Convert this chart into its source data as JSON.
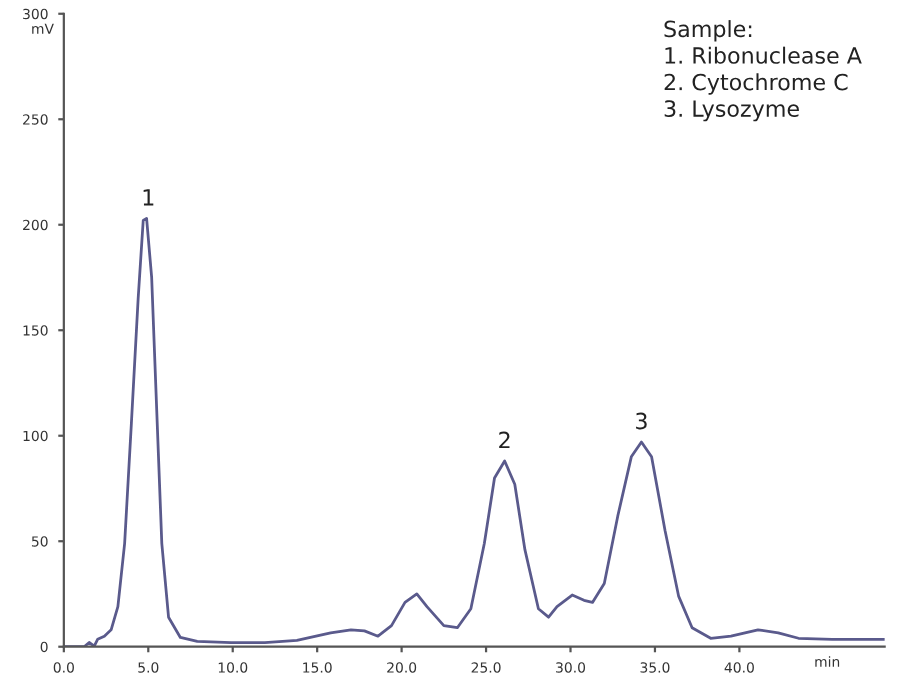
{
  "chart_data": {
    "type": "line",
    "ylabel": "mV",
    "xlabel": "min",
    "x": [
      0,
      1.2,
      1.5,
      1.8,
      2.0,
      2.4,
      2.8,
      3.2,
      3.6,
      4.0,
      4.4,
      4.7,
      4.9,
      5.2,
      5.5,
      5.8,
      6.2,
      6.9,
      7.9,
      9.9,
      11.9,
      13.8,
      15.8,
      17.0,
      17.8,
      18.6,
      19.4,
      20.2,
      20.9,
      21.5,
      22.5,
      23.3,
      24.1,
      24.9,
      25.5,
      26.1,
      26.7,
      27.3,
      28.1,
      28.7,
      29.2,
      30.1,
      30.8,
      31.3,
      32.0,
      32.8,
      33.6,
      34.2,
      34.8,
      35.6,
      36.4,
      37.2,
      38.3,
      39.5,
      41.1,
      42.3,
      43.5,
      45.5,
      48.6
    ],
    "series": [
      {
        "color": "#5a5a8c",
        "values": [
          0,
          0,
          2,
          0.3,
          3.5,
          5,
          8,
          19,
          49,
          106,
          165,
          202,
          203,
          175,
          112,
          49,
          14,
          4.4,
          2.5,
          1.9,
          1.9,
          3,
          6.6,
          8,
          7.5,
          5,
          10,
          21,
          25,
          19,
          10,
          9,
          18,
          49,
          80,
          88,
          77,
          46,
          18,
          14,
          19,
          24.5,
          22,
          21,
          30,
          62,
          90,
          97,
          90,
          55,
          24,
          9,
          4,
          5,
          8,
          6.6,
          4,
          3.5,
          3.5
        ]
      }
    ],
    "xlim": [
      0,
      48.6
    ],
    "ylim": [
      0,
      300
    ],
    "xticks": [
      {
        "value": 0,
        "label": "0.0"
      },
      {
        "value": 5,
        "label": "5.0"
      },
      {
        "value": 10,
        "label": "10.0"
      },
      {
        "value": 15,
        "label": "15.0"
      },
      {
        "value": 20,
        "label": "20.0"
      },
      {
        "value": 25,
        "label": "25.0"
      },
      {
        "value": 30,
        "label": "30.0"
      },
      {
        "value": 35,
        "label": "35.0"
      },
      {
        "value": 40,
        "label": "40.0"
      }
    ],
    "yticks": [
      0,
      50,
      100,
      150,
      200,
      250,
      300
    ],
    "annotations": [
      {
        "text": "1",
        "x": 5.0,
        "y": 203
      },
      {
        "text": "2",
        "x": 26.1,
        "y": 88
      },
      {
        "text": "3",
        "x": 34.2,
        "y": 97
      },
      "Sample:\n1. Ribonuclease A\n2. Cytochrome C\n3. Lysozyme"
    ],
    "grid": false,
    "legend": false,
    "marker": "none",
    "line_style": "solid"
  }
}
